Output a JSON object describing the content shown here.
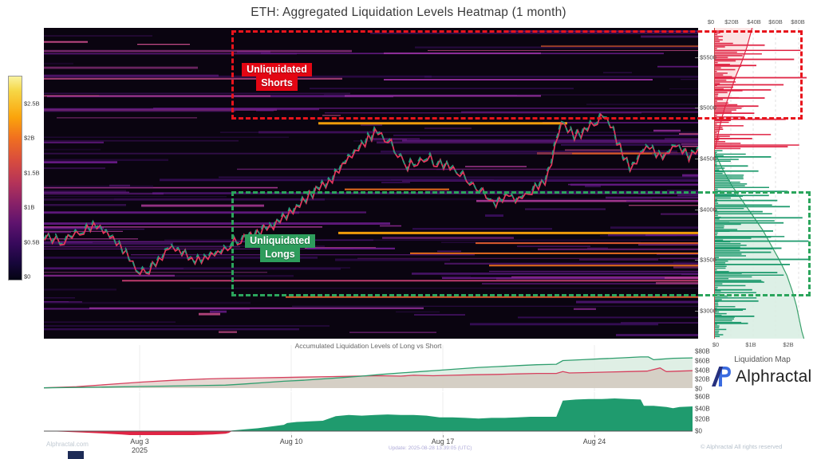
{
  "title": "ETH: Aggregated Liquidation Levels Heatmap (1 month)",
  "colorbar": {
    "labels": [
      "$2.5B",
      "$2B",
      "$1.5B",
      "$1B",
      "$0.5B",
      "$0"
    ]
  },
  "price_axis": {
    "labels": [
      "$5500",
      "$5000",
      "$4500",
      "$4000",
      "$3500",
      "$3000"
    ]
  },
  "boxes": {
    "shorts": {
      "line1": "Unliquidated",
      "line2": "Shorts"
    },
    "longs": {
      "line1": "Unliquidated",
      "line2": "Longs"
    }
  },
  "right_panel": {
    "top_axis": [
      "$0",
      "$20B",
      "$40B",
      "$60B",
      "$80B"
    ],
    "bottom_axis": [
      "$0",
      "$1B",
      "$2B"
    ]
  },
  "accumulated_panel": {
    "title": "Accumulated Liquidation Levels of Long vs Short",
    "y_labels": [
      "$80B",
      "$60B",
      "$40B",
      "$20B",
      "$0"
    ]
  },
  "net_panel": {
    "y_labels": [
      "$60B",
      "$40B",
      "$20B",
      "$0"
    ]
  },
  "x_axis": {
    "labels": [
      "Aug 3",
      "Aug 10",
      "Aug 17",
      "Aug 24"
    ],
    "year": "2025"
  },
  "branding": {
    "map_label": "Liquidation Map",
    "brand": "Alphractal",
    "site": "Alphractal.com",
    "update": "Update: 2025-08-28 13:39:05 (UTC)",
    "copyright": "© Alphractal All rights reserved"
  },
  "chart_data": {
    "type": "heatmap",
    "title": "ETH: Aggregated Liquidation Levels Heatmap (1 month)",
    "x_range_dates": [
      "Jul 30 2025",
      "Aug 28 2025"
    ],
    "price_axis_usd": [
      2730,
      5790
    ],
    "intensity_scale_usd_b": [
      0,
      2.5
    ],
    "legend_position": "left-colorbar",
    "grid": false,
    "colors": {
      "price_up": "#1fa07c",
      "price_down": "#e8365d",
      "long": "#1f9b6e",
      "short": "#e02545",
      "shorts_box": "#e8141c",
      "longs_box": "#2ba55c",
      "heat_low": "#1b0b35",
      "heat_mid": "#8f2a94",
      "heat_high": "#fca50a"
    },
    "price_series": [
      [
        0.0,
        3745
      ],
      [
        0.03,
        3700
      ],
      [
        0.06,
        3820
      ],
      [
        0.08,
        3860
      ],
      [
        0.1,
        3760
      ],
      [
        0.12,
        3620
      ],
      [
        0.14,
        3450
      ],
      [
        0.146,
        3390
      ],
      [
        0.16,
        3420
      ],
      [
        0.18,
        3560
      ],
      [
        0.19,
        3640
      ],
      [
        0.21,
        3600
      ],
      [
        0.23,
        3500
      ],
      [
        0.25,
        3540
      ],
      [
        0.27,
        3600
      ],
      [
        0.285,
        3680
      ],
      [
        0.3,
        3720
      ],
      [
        0.32,
        3760
      ],
      [
        0.34,
        3830
      ],
      [
        0.36,
        3900
      ],
      [
        0.38,
        3990
      ],
      [
        0.4,
        4120
      ],
      [
        0.42,
        4230
      ],
      [
        0.44,
        4320
      ],
      [
        0.46,
        4480
      ],
      [
        0.48,
        4620
      ],
      [
        0.5,
        4740
      ],
      [
        0.51,
        4780
      ],
      [
        0.525,
        4700
      ],
      [
        0.54,
        4560
      ],
      [
        0.555,
        4440
      ],
      [
        0.57,
        4480
      ],
      [
        0.585,
        4540
      ],
      [
        0.6,
        4460
      ],
      [
        0.62,
        4440
      ],
      [
        0.635,
        4380
      ],
      [
        0.65,
        4280
      ],
      [
        0.665,
        4200
      ],
      [
        0.68,
        4120
      ],
      [
        0.69,
        4060
      ],
      [
        0.7,
        4120
      ],
      [
        0.71,
        4160
      ],
      [
        0.72,
        4100
      ],
      [
        0.73,
        4140
      ],
      [
        0.745,
        4200
      ],
      [
        0.755,
        4240
      ],
      [
        0.765,
        4300
      ],
      [
        0.775,
        4480
      ],
      [
        0.785,
        4750
      ],
      [
        0.79,
        4886
      ],
      [
        0.8,
        4800
      ],
      [
        0.81,
        4730
      ],
      [
        0.82,
        4760
      ],
      [
        0.83,
        4830
      ],
      [
        0.845,
        4890
      ],
      [
        0.855,
        4940
      ],
      [
        0.865,
        4850
      ],
      [
        0.875,
        4700
      ],
      [
        0.885,
        4550
      ],
      [
        0.895,
        4420
      ],
      [
        0.905,
        4480
      ],
      [
        0.915,
        4600
      ],
      [
        0.925,
        4640
      ],
      [
        0.935,
        4560
      ],
      [
        0.945,
        4520
      ],
      [
        0.955,
        4590
      ],
      [
        0.965,
        4650
      ],
      [
        0.975,
        4580
      ],
      [
        0.985,
        4540
      ],
      [
        1.0,
        4620
      ]
    ],
    "heatmap_levels": [
      {
        "price": 5540,
        "x1": 0.52,
        "x2": 0.76,
        "b": 0.7
      },
      {
        "price": 5280,
        "x1": 0.52,
        "x2": 0.93,
        "b": 0.9
      },
      {
        "price": 5120,
        "x1": 0.46,
        "x2": 0.76,
        "b": 0.8
      },
      {
        "price": 4850,
        "x1": 0.42,
        "x2": 0.8,
        "b": 2.3
      },
      {
        "price": 4200,
        "x1": 0.46,
        "x2": 0.62,
        "b": 1.9
      },
      {
        "price": 3770,
        "x1": 0.45,
        "x2": 1.0,
        "b": 2.2
      },
      {
        "price": 3670,
        "x1": 0.66,
        "x2": 1.0,
        "b": 1.5
      },
      {
        "price": 3570,
        "x1": 0.56,
        "x2": 1.0,
        "b": 1.7
      },
      {
        "price": 3450,
        "x1": 0.68,
        "x2": 1.0,
        "b": 1.9
      },
      {
        "price": 3300,
        "x1": 0.12,
        "x2": 1.0,
        "b": 1.2
      },
      {
        "price": 3140,
        "x1": 0.37,
        "x2": 1.0,
        "b": 1.6
      },
      {
        "price": 3030,
        "x1": 0.07,
        "x2": 0.58,
        "b": 1.0
      }
    ],
    "short_profile_cum_b": [
      [
        5790,
        36
      ],
      [
        5600,
        31
      ],
      [
        5450,
        26
      ],
      [
        5300,
        20
      ],
      [
        5150,
        15
      ],
      [
        5000,
        10
      ],
      [
        4890,
        7
      ],
      [
        4750,
        4
      ],
      [
        4600,
        1
      ]
    ],
    "long_profile_cum_b": [
      [
        4560,
        1
      ],
      [
        4400,
        8
      ],
      [
        4250,
        16
      ],
      [
        4100,
        26
      ],
      [
        3950,
        36
      ],
      [
        3800,
        46
      ],
      [
        3650,
        54
      ],
      [
        3500,
        62
      ],
      [
        3350,
        69
      ],
      [
        3200,
        74
      ],
      [
        3050,
        78
      ],
      [
        2900,
        81
      ],
      [
        2800,
        83
      ],
      [
        2730,
        85
      ]
    ],
    "red_bars": [
      [
        5620,
        1.2
      ],
      [
        5480,
        1.9
      ],
      [
        5420,
        1.0
      ],
      [
        5300,
        2.2
      ],
      [
        5230,
        1.65
      ],
      [
        5180,
        1.35
      ],
      [
        5100,
        1.2
      ],
      [
        5020,
        1.05
      ],
      [
        4950,
        0.95
      ],
      [
        4890,
        1.7
      ],
      [
        4700,
        0.9
      ],
      [
        4620,
        1.75
      ]
    ],
    "green_bars": [
      [
        4520,
        1.35
      ],
      [
        4430,
        0.8
      ],
      [
        4380,
        1.05
      ],
      [
        4180,
        1.75
      ],
      [
        4140,
        1.3
      ],
      [
        4090,
        1.5
      ],
      [
        4030,
        1.8
      ],
      [
        3980,
        1.15
      ],
      [
        3920,
        2.1
      ],
      [
        3870,
        1.65
      ],
      [
        3790,
        1.4
      ],
      [
        3730,
        1.35
      ],
      [
        3690,
        2.25
      ],
      [
        3620,
        1.6
      ],
      [
        3580,
        1.35
      ],
      [
        3510,
        2.25
      ],
      [
        3460,
        1.8
      ],
      [
        3380,
        1.5
      ],
      [
        3290,
        1.15
      ],
      [
        3210,
        0.9
      ],
      [
        3100,
        1.05
      ],
      [
        3020,
        0.75
      ],
      [
        2950,
        0.95
      ],
      [
        2880,
        0.8
      ]
    ],
    "acc_long_b": [
      [
        0,
        0.5
      ],
      [
        0.08,
        2
      ],
      [
        0.15,
        3.5
      ],
      [
        0.22,
        5
      ],
      [
        0.28,
        6.5
      ],
      [
        0.31,
        9
      ],
      [
        0.34,
        12
      ],
      [
        0.37,
        15
      ],
      [
        0.4,
        17
      ],
      [
        0.43,
        20
      ],
      [
        0.46,
        23
      ],
      [
        0.49,
        26
      ],
      [
        0.52,
        30
      ],
      [
        0.55,
        33
      ],
      [
        0.58,
        36
      ],
      [
        0.61,
        39
      ],
      [
        0.64,
        42
      ],
      [
        0.67,
        45
      ],
      [
        0.7,
        47
      ],
      [
        0.73,
        49
      ],
      [
        0.76,
        51
      ],
      [
        0.79,
        52
      ],
      [
        0.8,
        60
      ],
      [
        0.83,
        62
      ],
      [
        0.86,
        64
      ],
      [
        0.89,
        66
      ],
      [
        0.92,
        68
      ],
      [
        0.932,
        68
      ],
      [
        0.94,
        62
      ],
      [
        0.95,
        63
      ],
      [
        0.97,
        65
      ],
      [
        1,
        66
      ]
    ],
    "acc_short_b": [
      [
        0,
        0.5
      ],
      [
        0.05,
        3
      ],
      [
        0.1,
        8
      ],
      [
        0.15,
        13
      ],
      [
        0.2,
        17
      ],
      [
        0.25,
        20
      ],
      [
        0.28,
        21
      ],
      [
        0.32,
        22
      ],
      [
        0.36,
        23
      ],
      [
        0.4,
        24
      ],
      [
        0.44,
        25
      ],
      [
        0.48,
        26
      ],
      [
        0.52,
        27
      ],
      [
        0.55,
        26
      ],
      [
        0.57,
        28
      ],
      [
        0.6,
        27
      ],
      [
        0.63,
        28
      ],
      [
        0.66,
        29
      ],
      [
        0.7,
        30
      ],
      [
        0.73,
        31
      ],
      [
        0.76,
        32
      ],
      [
        0.79,
        32
      ],
      [
        0.8,
        36
      ],
      [
        0.81,
        33
      ],
      [
        0.84,
        34
      ],
      [
        0.87,
        35
      ],
      [
        0.9,
        36
      ],
      [
        0.93,
        37
      ],
      [
        0.95,
        44
      ],
      [
        0.957,
        38
      ],
      [
        0.96,
        36
      ],
      [
        0.98,
        37
      ],
      [
        1,
        38
      ]
    ],
    "net_b": [
      [
        0,
        0
      ],
      [
        0.03,
        -1
      ],
      [
        0.06,
        -2.5
      ],
      [
        0.09,
        -4
      ],
      [
        0.12,
        -6
      ],
      [
        0.14,
        -7.5
      ],
      [
        0.17,
        -8
      ],
      [
        0.2,
        -7.5
      ],
      [
        0.23,
        -7
      ],
      [
        0.26,
        -6
      ],
      [
        0.28,
        -4.5
      ],
      [
        0.285,
        -3
      ],
      [
        0.29,
        1
      ],
      [
        0.31,
        3
      ],
      [
        0.33,
        5
      ],
      [
        0.35,
        8
      ],
      [
        0.37,
        11
      ],
      [
        0.375,
        14
      ],
      [
        0.39,
        16
      ],
      [
        0.41,
        17
      ],
      [
        0.43,
        18
      ],
      [
        0.45,
        26
      ],
      [
        0.47,
        28
      ],
      [
        0.49,
        27
      ],
      [
        0.51,
        28
      ],
      [
        0.53,
        29
      ],
      [
        0.55,
        28
      ],
      [
        0.57,
        28
      ],
      [
        0.59,
        27
      ],
      [
        0.61,
        24
      ],
      [
        0.63,
        24
      ],
      [
        0.65,
        23
      ],
      [
        0.67,
        22
      ],
      [
        0.69,
        23
      ],
      [
        0.71,
        23
      ],
      [
        0.73,
        24
      ],
      [
        0.75,
        25
      ],
      [
        0.79,
        25
      ],
      [
        0.8,
        53
      ],
      [
        0.82,
        55
      ],
      [
        0.84,
        56
      ],
      [
        0.86,
        56
      ],
      [
        0.88,
        57
      ],
      [
        0.9,
        56
      ],
      [
        0.92,
        55
      ],
      [
        0.925,
        44
      ],
      [
        0.94,
        44
      ],
      [
        0.96,
        42
      ],
      [
        0.97,
        40
      ],
      [
        0.98,
        42
      ],
      [
        1,
        43
      ]
    ]
  }
}
